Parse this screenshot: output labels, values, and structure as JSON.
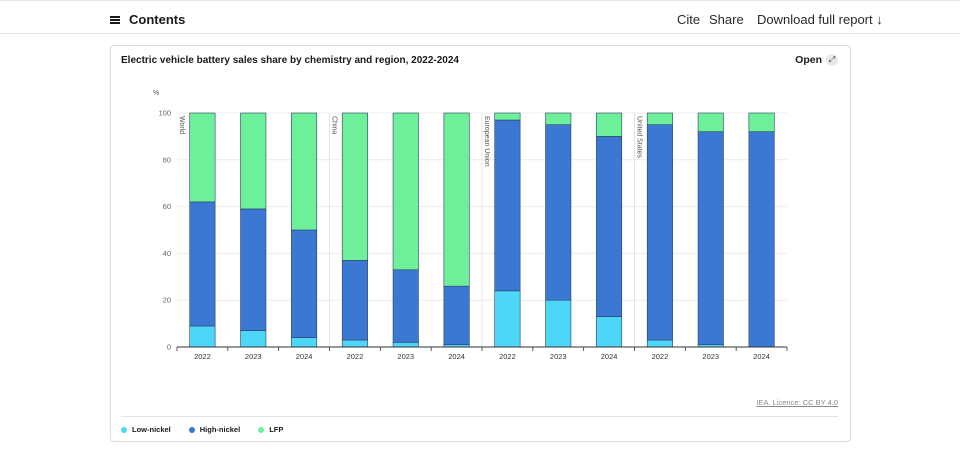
{
  "topbar": {
    "contents_label": "Contents",
    "cite_label": "Cite",
    "share_label": "Share",
    "download_label": "Download full report ↓"
  },
  "card": {
    "open_label": "Open",
    "open_icon": "expand-icon",
    "source_label": "IEA. Licence: CC BY 4.0"
  },
  "colors": {
    "low_nickel": "#4dd6f7",
    "high_nickel": "#3a78d4",
    "lfp": "#6ef09a"
  },
  "chart_data": {
    "type": "bar",
    "stacked": true,
    "title": "Electric vehicle battery sales share by chemistry and region, 2022-2024",
    "ylabel": "%",
    "ylim": [
      0,
      100
    ],
    "yticks": [
      0,
      20,
      40,
      60,
      80,
      100
    ],
    "grid": true,
    "legend_position": "bottom-left",
    "groups": [
      {
        "name": "World",
        "categories": [
          "2022",
          "2023",
          "2024"
        ]
      },
      {
        "name": "China",
        "categories": [
          "2022",
          "2023",
          "2024"
        ]
      },
      {
        "name": "European Union",
        "categories": [
          "2022",
          "2023",
          "2024"
        ]
      },
      {
        "name": "United States",
        "categories": [
          "2022",
          "2023",
          "2024"
        ]
      }
    ],
    "series": [
      {
        "name": "Low-nickel",
        "values": [
          9,
          7,
          4,
          3,
          2,
          1,
          24,
          20,
          13,
          3,
          1,
          0
        ]
      },
      {
        "name": "High-nickel",
        "values": [
          53,
          52,
          46,
          34,
          31,
          25,
          73,
          75,
          77,
          92,
          91,
          92
        ]
      },
      {
        "name": "LFP",
        "values": [
          38,
          41,
          50,
          63,
          67,
          74,
          3,
          5,
          10,
          5,
          8,
          8
        ]
      }
    ]
  }
}
